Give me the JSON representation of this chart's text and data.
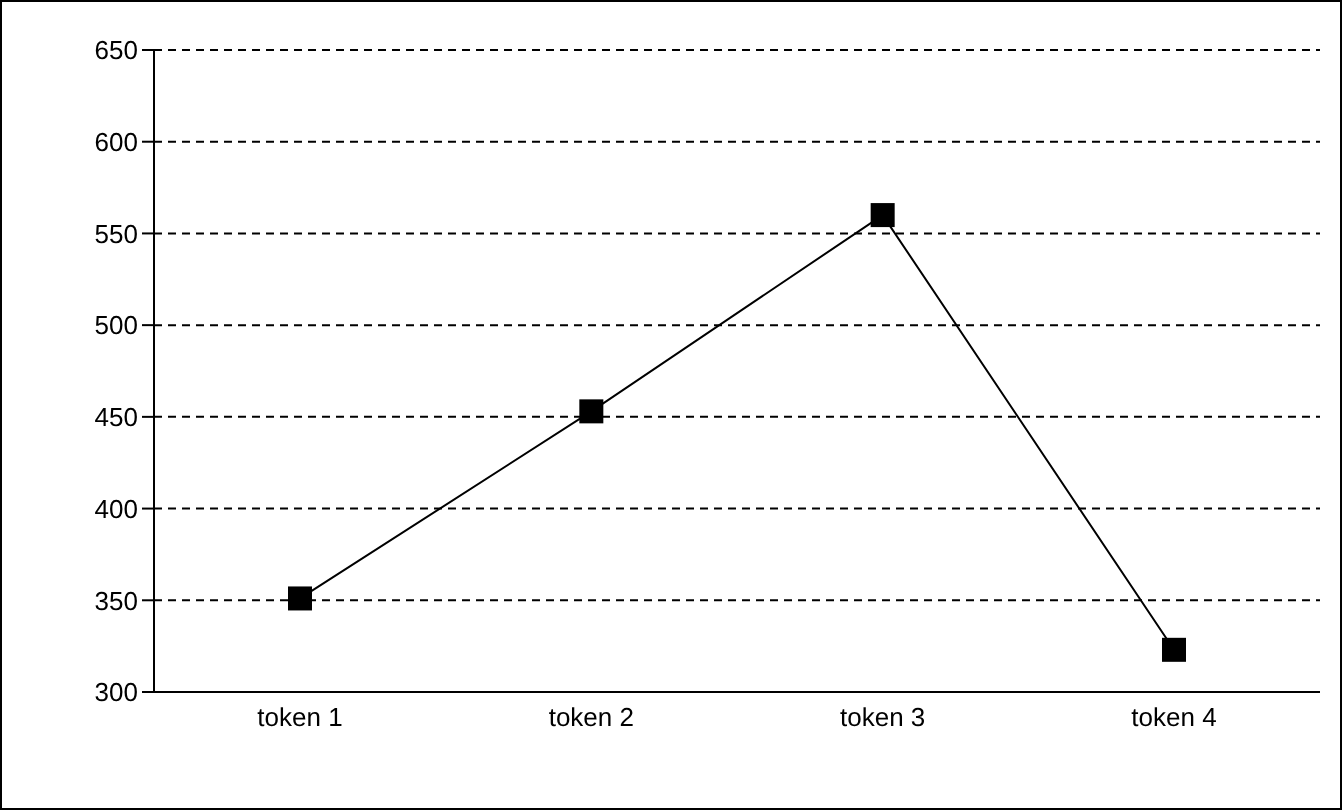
{
  "chart_data": {
    "type": "line",
    "categories": [
      "token 1",
      "token 2",
      "token 3",
      "token 4"
    ],
    "series": [
      {
        "color": "#000000",
        "values": [
          351,
          453,
          560,
          323
        ]
      }
    ],
    "ylim": [
      300,
      650
    ],
    "yticks": [
      300,
      350,
      400,
      450,
      500,
      550,
      600,
      650
    ],
    "grid": "y",
    "marker": "square",
    "line_style": "solid"
  }
}
